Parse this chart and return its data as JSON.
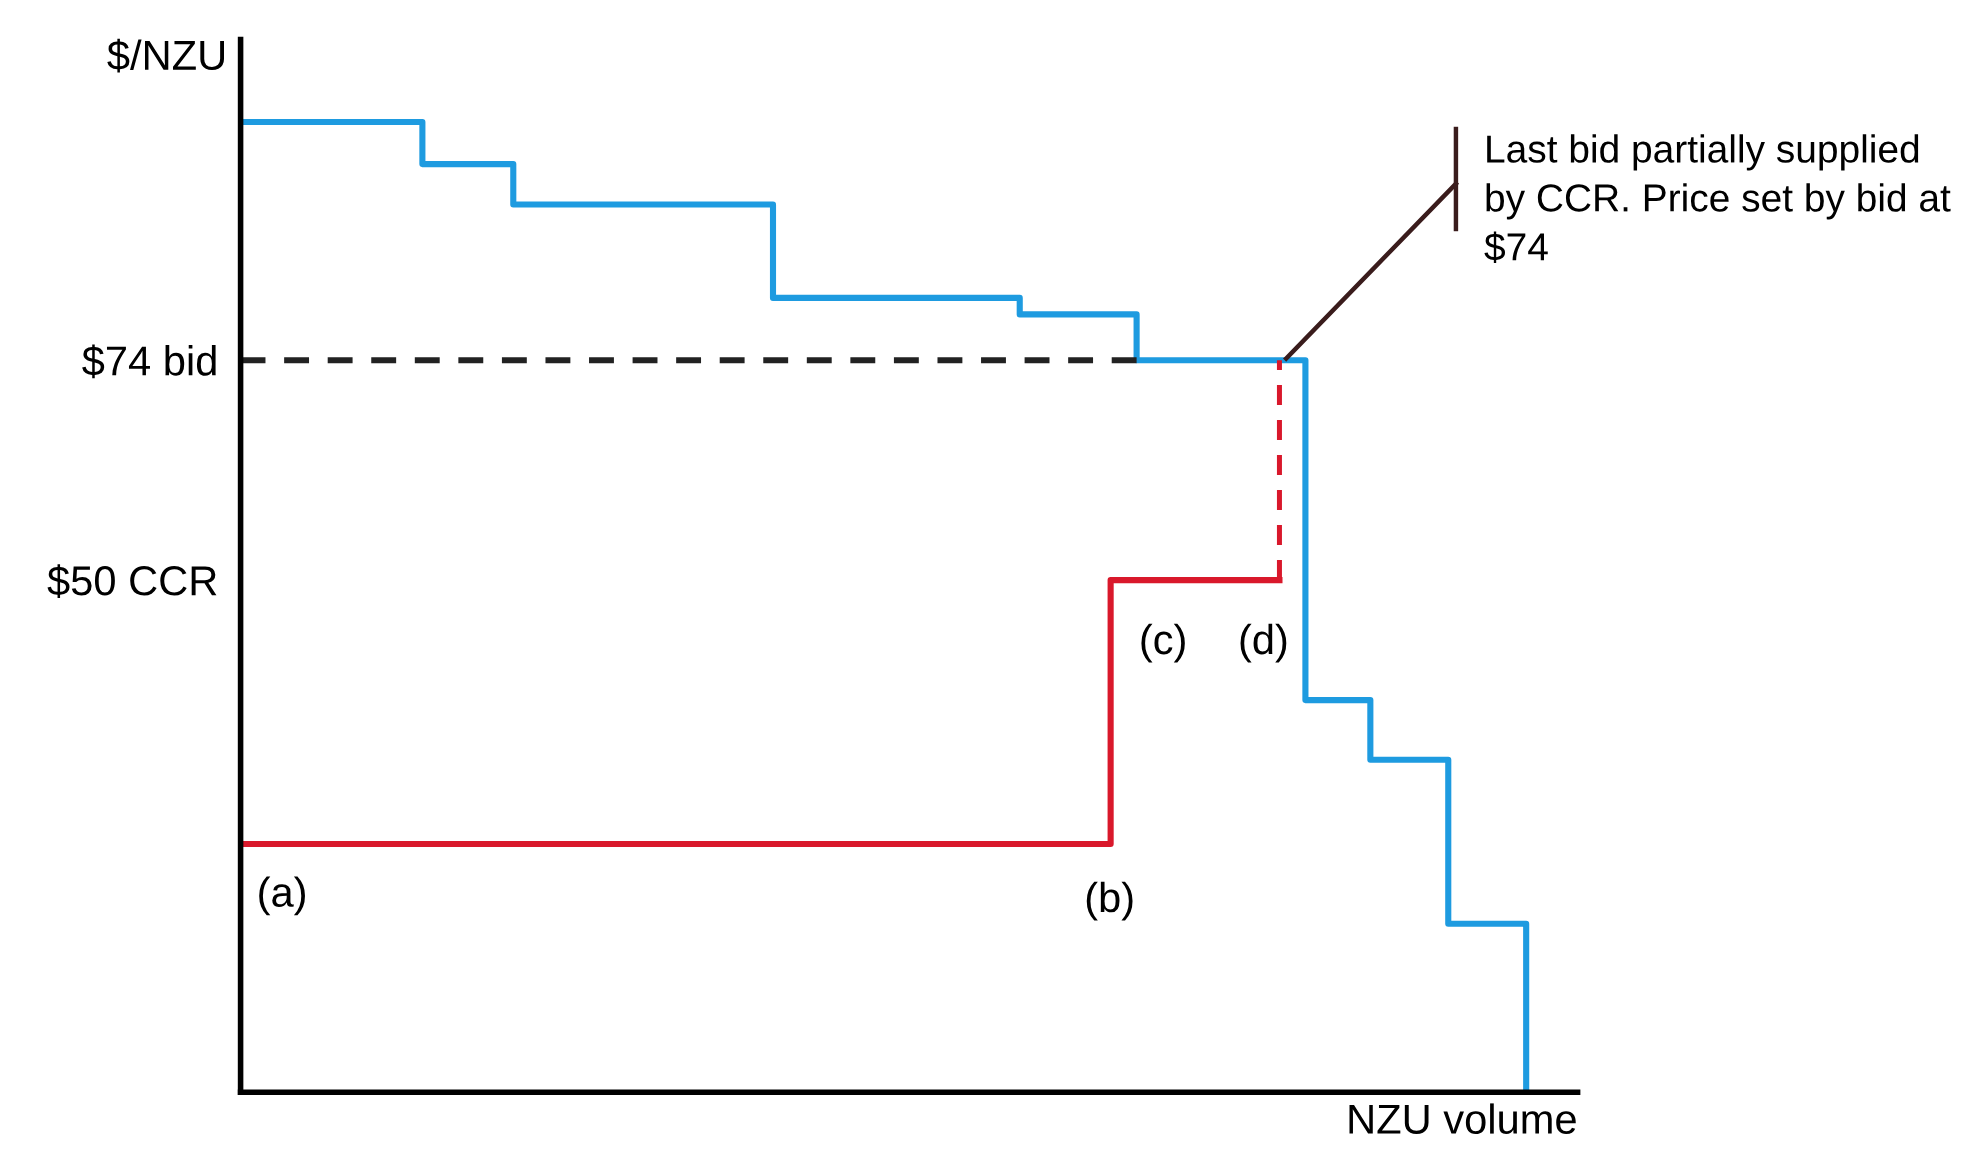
{
  "chart_data": {
    "type": "step",
    "xlabel": "NZU volume",
    "ylabel": "$/NZU",
    "categories": [
      null,
      null,
      null,
      null,
      null,
      null,
      null,
      null,
      null,
      null,
      null,
      null,
      null,
      null,
      null,
      null,
      null,
      null,
      null,
      null,
      null,
      null,
      null,
      null,
      null,
      null,
      null,
      null,
      null,
      null,
      null,
      null,
      null,
      null,
      null,
      null,
      null,
      null,
      null,
      null,
      null,
      null,
      null,
      null,
      null,
      null,
      null,
      null,
      null,
      null,
      null,
      null,
      null,
      null,
      null,
      null,
      null,
      null,
      null,
      null,
      null,
      null,
      null,
      null,
      null,
      null,
      null,
      null,
      null,
      null,
      null,
      null,
      null,
      null,
      null,
      null,
      null,
      null,
      null,
      null,
      null,
      null,
      null,
      null,
      null,
      null,
      null,
      null,
      null,
      null,
      null,
      null,
      null,
      null,
      null,
      null,
      null,
      null,
      null,
      null
    ],
    "series": [
      {
        "color": "#1e9be0",
        "values": [
          100,
          100,
          100,
          100,
          100,
          100,
          100,
          100,
          100,
          100,
          100,
          100,
          100,
          100,
          95.4,
          95.4,
          95.4,
          95.4,
          95.4,
          95.4,
          95.4,
          91,
          91,
          91,
          91,
          91,
          91,
          91,
          91,
          91,
          91,
          91,
          91,
          91,
          91,
          91,
          91,
          91,
          91,
          91,
          91,
          80.8,
          80.8,
          80.8,
          80.8,
          80.8,
          80.8,
          80.8,
          80.8,
          80.8,
          80.8,
          80.8,
          80.8,
          80.8,
          80.8,
          80.8,
          80.8,
          80.8,
          80.8,
          80.8,
          79,
          79,
          79,
          79,
          79,
          79,
          79,
          79,
          79,
          74,
          74,
          74,
          74,
          74,
          74,
          74,
          74,
          74,
          74,
          74,
          74,
          74,
          36.9,
          36.9,
          36.9,
          36.9,
          36.9,
          30.4,
          30.4,
          30.4,
          30.4,
          30.4,
          30.4,
          12.5,
          12.5,
          12.5,
          12.5,
          12.5,
          12.5,
          -5.9
        ]
      },
      {
        "color": "#d9182b",
        "values": [
          21.2,
          21.2,
          21.2,
          21.2,
          21.2,
          21.2,
          21.2,
          21.2,
          21.2,
          21.2,
          21.2,
          21.2,
          21.2,
          21.2,
          21.2,
          21.2,
          21.2,
          21.2,
          21.2,
          21.2,
          21.2,
          21.2,
          21.2,
          21.2,
          21.2,
          21.2,
          21.2,
          21.2,
          21.2,
          21.2,
          21.2,
          21.2,
          21.2,
          21.2,
          21.2,
          21.2,
          21.2,
          21.2,
          21.2,
          21.2,
          21.2,
          21.2,
          21.2,
          21.2,
          21.2,
          21.2,
          21.2,
          21.2,
          21.2,
          21.2,
          21.2,
          21.2,
          21.2,
          21.2,
          21.2,
          21.2,
          21.2,
          21.2,
          21.2,
          21.2,
          21.2,
          21.2,
          21.2,
          21.2,
          21.2,
          21.2,
          21.2,
          50,
          50,
          50,
          50,
          50,
          50,
          50,
          50,
          50,
          50,
          50,
          50,
          50,
          50,
          null,
          null,
          null,
          null,
          null,
          null,
          null,
          null,
          null,
          null,
          null,
          null,
          null,
          null,
          null,
          null,
          null,
          null,
          null
        ],
        "errors": [
          null,
          null,
          null,
          null,
          null,
          null,
          null,
          null,
          null,
          null,
          null,
          null,
          null,
          null,
          null,
          null,
          null,
          null,
          null,
          null,
          null,
          null,
          null,
          null,
          null,
          null,
          null,
          null,
          null,
          null,
          null,
          null,
          null,
          null,
          null,
          null,
          null,
          null,
          null,
          null,
          null,
          null,
          null,
          null,
          null,
          null,
          null,
          null,
          null,
          null,
          null,
          null,
          null,
          null,
          null,
          null,
          null,
          null,
          null,
          null,
          null,
          null,
          null,
          null,
          null,
          null,
          null,
          null,
          null,
          null,
          null,
          null,
          null,
          null,
          null,
          null,
          null,
          null,
          null,
          null,
          [
            50,
            74
          ],
          null,
          null,
          null,
          null,
          null,
          null,
          null,
          null,
          null,
          null,
          null,
          null,
          null,
          null,
          null,
          null,
          null,
          null,
          null
        ]
      },
      {
        "type": "line",
        "color": "#222222",
        "line_style": "dashed",
        "values": [
          74,
          74,
          74,
          74,
          74,
          74,
          74,
          74,
          74,
          74,
          74,
          74,
          74,
          74,
          74,
          74,
          74,
          74,
          74,
          74,
          74,
          74,
          74,
          74,
          74,
          74,
          74,
          74,
          74,
          74,
          74,
          74,
          74,
          74,
          74,
          74,
          74,
          74,
          74,
          74,
          74,
          74,
          74,
          74,
          74,
          74,
          74,
          74,
          74,
          74,
          74,
          74,
          74,
          74,
          74,
          74,
          74,
          74,
          74,
          74,
          74,
          74,
          74,
          74,
          74,
          74,
          74,
          74,
          74,
          74,
          null,
          null,
          null,
          null,
          null,
          null,
          null,
          null,
          null,
          null,
          null,
          null,
          null,
          null,
          null,
          null,
          null,
          null,
          null,
          null,
          null,
          null,
          null,
          null,
          null,
          null,
          null,
          null,
          null,
          null
        ]
      }
    ],
    "ylim": [
      -5.9,
      109
    ],
    "yticks": [
      {
        "value": 74,
        "label": "$74 bid"
      },
      {
        "value": 50,
        "label": "$50 CCR"
      }
    ],
    "tick_labels": "y",
    "grid": false,
    "legend": false,
    "annotations": [
      "(a)",
      "(b)",
      "(c)",
      "(d)",
      "Last bid partially supplied by CCR. Price set by bid at $74"
    ]
  }
}
